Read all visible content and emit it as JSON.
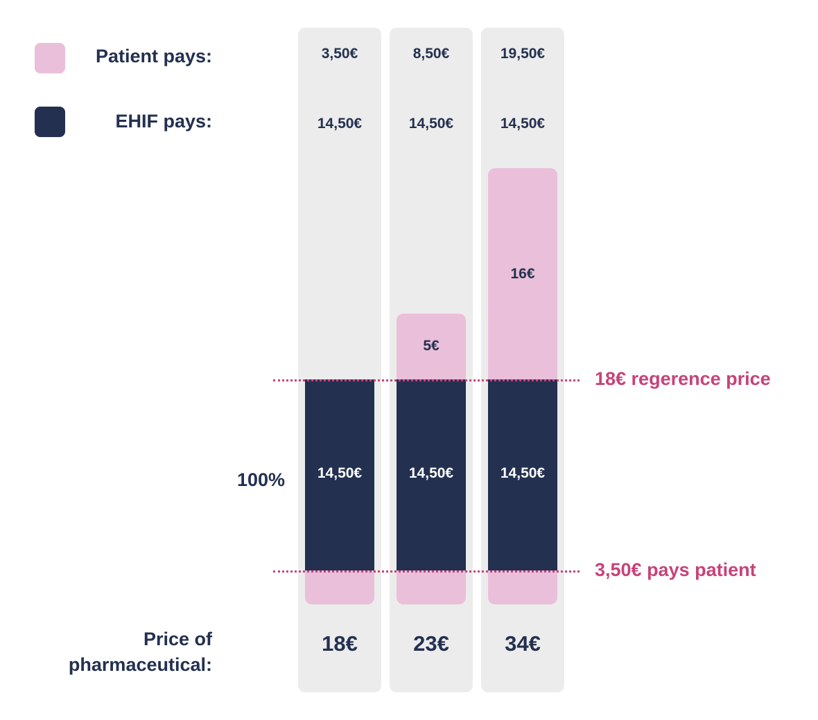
{
  "legend": {
    "patient_label": "Patient pays:",
    "ehif_label": "EHIF pays:",
    "patient_color": "#eabfd9",
    "ehif_color": "#233050"
  },
  "side": {
    "percent_label": "100%",
    "price_label_line1": "Price of",
    "price_label_line2": "pharmaceutical:"
  },
  "reference_lines": {
    "reference_price_label": "18€ regerence price",
    "patient_pays_label": "3,50€ pays patient",
    "line_color": "#c7427a"
  },
  "chart_data": {
    "type": "bar",
    "stacked": true,
    "categories": [
      "18€",
      "23€",
      "34€"
    ],
    "series": [
      {
        "name": "EHIF pays",
        "values": [
          14.5,
          14.5,
          14.5
        ],
        "labels": [
          "14,50€",
          "14,50€",
          "14,50€"
        ]
      },
      {
        "name": "Patient pays",
        "values": [
          3.5,
          8.5,
          19.5
        ],
        "labels": [
          "3,50€",
          "8,50€",
          "19,50€"
        ]
      }
    ],
    "patient_base_values": [
      3.5,
      3.5,
      3.5
    ],
    "patient_above_reference_values": [
      0,
      5,
      16
    ],
    "patient_above_reference_labels": [
      "",
      "5€",
      "16€"
    ],
    "ehif_bar_labels": [
      "14,50€",
      "14,50€",
      "14,50€"
    ],
    "reference_price": 18,
    "patient_fixed_fee": 3.5
  }
}
